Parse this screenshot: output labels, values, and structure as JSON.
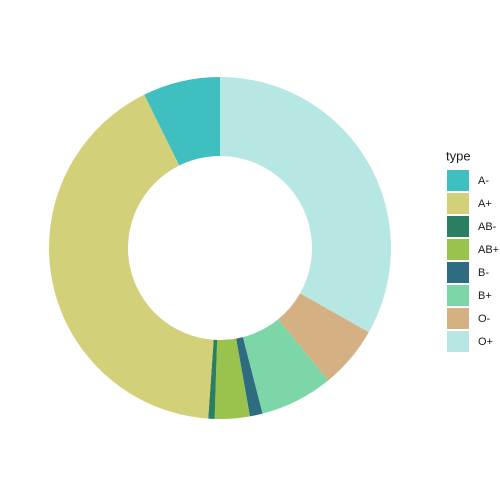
{
  "chart_data": {
    "type": "donut",
    "legend_title": "type",
    "categories": [
      "A-",
      "A+",
      "AB-",
      "AB+",
      "B-",
      "B+",
      "O-",
      "O+"
    ],
    "values": [
      7.3,
      41.6,
      0.6,
      3.3,
      1.2,
      6.9,
      5.9,
      33.2
    ],
    "colors": [
      "#3fbfbf",
      "#d3d07a",
      "#2a7f62",
      "#9ac34d",
      "#2e6d80",
      "#7dd6a8",
      "#d5b083",
      "#b7e7e3"
    ],
    "legend": "right"
  }
}
